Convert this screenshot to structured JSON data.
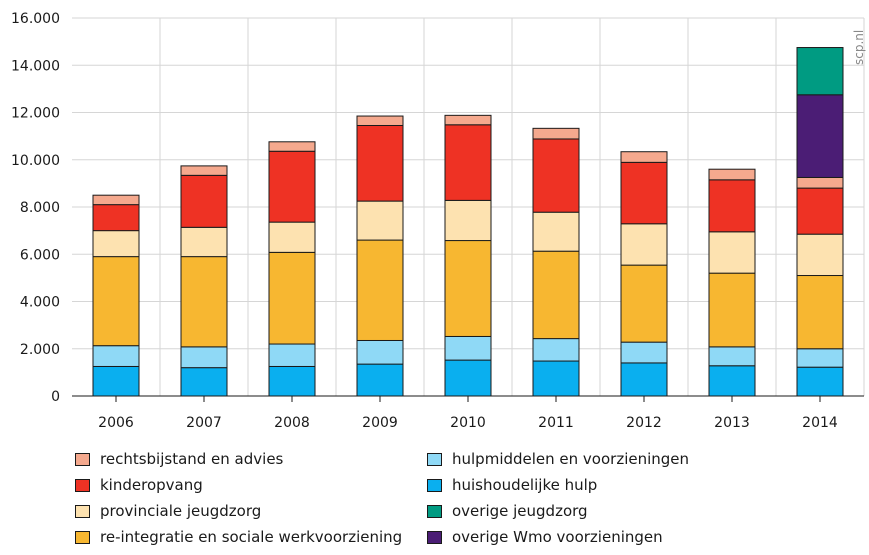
{
  "watermark": "scp.nl",
  "chart_data": {
    "type": "bar",
    "stacked": true,
    "title": "",
    "xlabel": "",
    "ylabel": "",
    "ylim": [
      0,
      16000
    ],
    "yticks": [
      0,
      2000,
      4000,
      6000,
      8000,
      10000,
      12000,
      14000,
      16000
    ],
    "ytick_labels": [
      "0",
      "2.000",
      "4.000",
      "6.000",
      "8.000",
      "10.000",
      "12.000",
      "14.000",
      "16.000"
    ],
    "categories": [
      "2006",
      "2007",
      "2008",
      "2009",
      "2010",
      "2011",
      "2012",
      "2013",
      "2014"
    ],
    "grid": "vertical and horizontal gridlines",
    "legend_position": "bottom",
    "series": [
      {
        "name": "huishoudelijke hulp",
        "color": "#0aafef",
        "values": [
          1250,
          1200,
          1250,
          1350,
          1520,
          1480,
          1400,
          1280,
          1220
        ]
      },
      {
        "name": "hulpmiddelen en voorzieningen",
        "color": "#8fd9f6",
        "values": [
          880,
          880,
          950,
          1000,
          1000,
          950,
          880,
          800,
          780
        ]
      },
      {
        "name": "re-integratie en sociale werkvoorziening",
        "color": "#f7b731",
        "values": [
          3770,
          3820,
          3880,
          4250,
          4060,
          3700,
          3260,
          3120,
          3100
        ]
      },
      {
        "name": "provinciale jeugdzorg",
        "color": "#fde2b0",
        "values": [
          1100,
          1240,
          1280,
          1650,
          1700,
          1650,
          1750,
          1750,
          1750
        ]
      },
      {
        "name": "kinderopvang",
        "color": "#ee3224",
        "values": [
          1100,
          2200,
          3000,
          3200,
          3200,
          3100,
          2600,
          2200,
          1950
        ]
      },
      {
        "name": "rechtsbijstand en advies",
        "color": "#f5a98e",
        "values": [
          400,
          400,
          400,
          400,
          400,
          450,
          450,
          450,
          450
        ]
      },
      {
        "name": "overige Wmo voorzieningen",
        "color": "#4b1d75",
        "values": [
          0,
          0,
          0,
          0,
          0,
          0,
          0,
          0,
          3500
        ]
      },
      {
        "name": "overige jeugdzorg",
        "color": "#009b82",
        "values": [
          0,
          0,
          0,
          0,
          0,
          0,
          0,
          0,
          2000
        ]
      }
    ]
  },
  "legend": [
    {
      "label": "rechtsbijstand en advies",
      "color": "#f5a98e"
    },
    {
      "label": "kinderopvang",
      "color": "#ee3224"
    },
    {
      "label": "provinciale jeugdzorg",
      "color": "#fde2b0"
    },
    {
      "label": "re-integratie en sociale werkvoorziening",
      "color": "#f7b731"
    },
    {
      "label": "hulpmiddelen en voorzieningen",
      "color": "#8fd9f6"
    },
    {
      "label": "huishoudelijke hulp",
      "color": "#0aafef"
    },
    {
      "label": "overige jeugdzorg",
      "color": "#009b82"
    },
    {
      "label": "overige Wmo voorzieningen",
      "color": "#4b1d75"
    }
  ]
}
